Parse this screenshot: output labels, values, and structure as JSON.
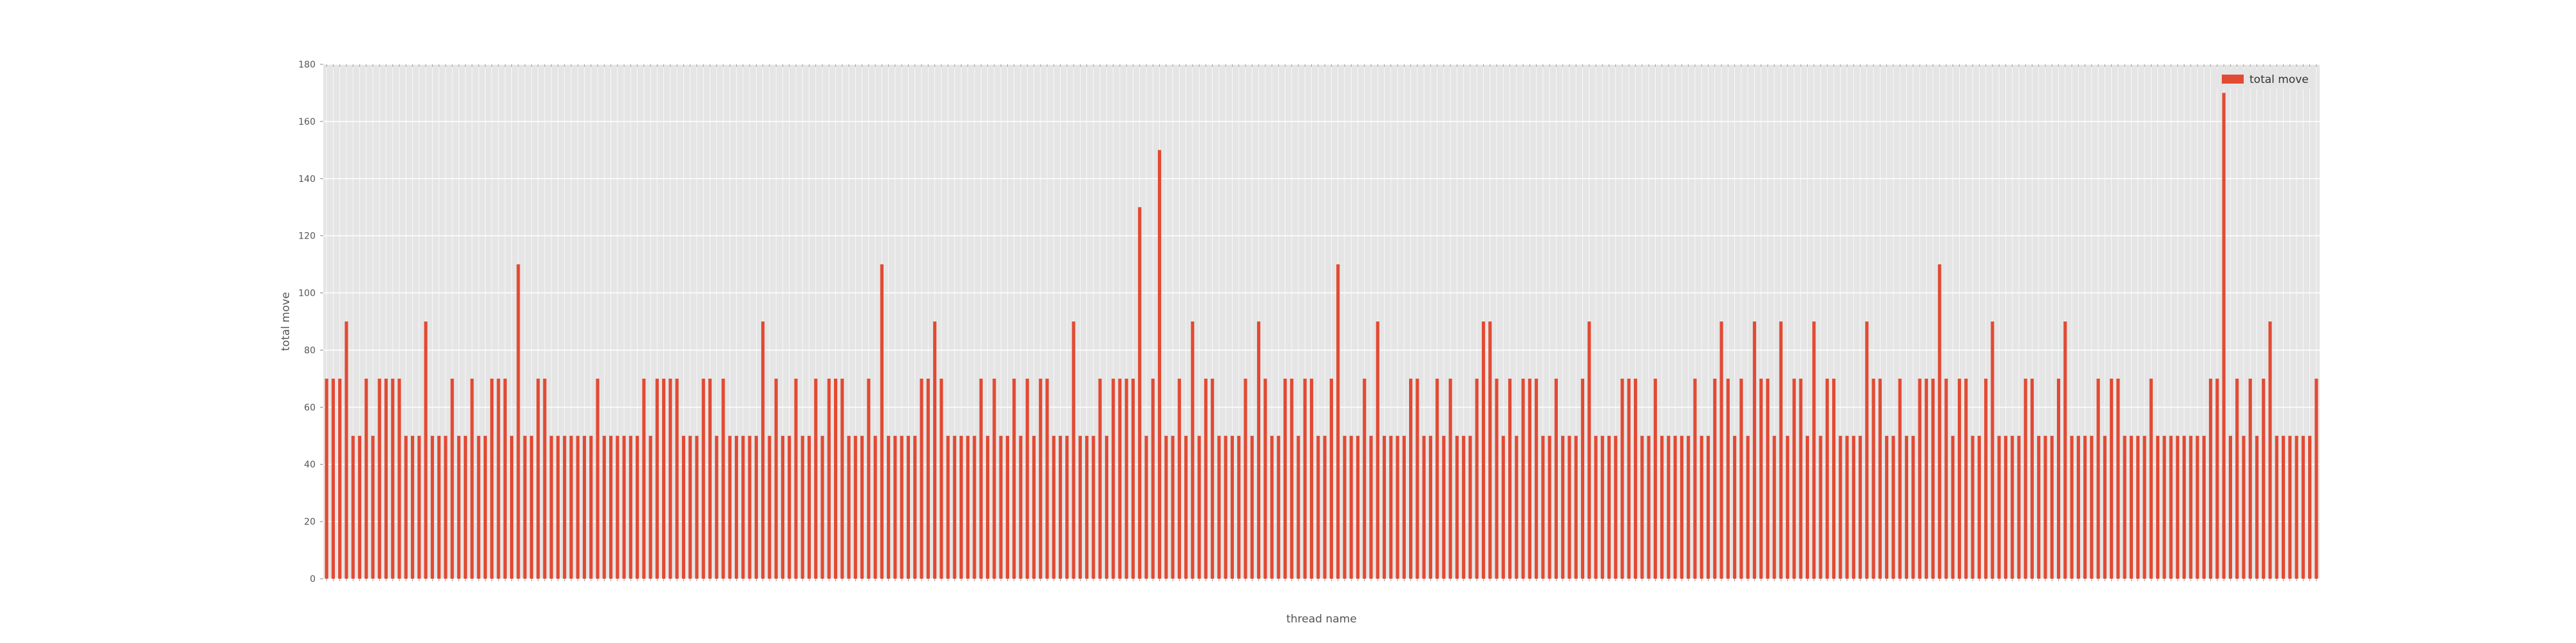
{
  "chart_data": {
    "type": "bar",
    "xlabel": "thread name",
    "ylabel": "total move",
    "ylim": [
      0,
      180
    ],
    "yticks": [
      0,
      20,
      40,
      60,
      80,
      100,
      120,
      140,
      160,
      180
    ],
    "grid": true,
    "legend_position": "top-right",
    "series": [
      {
        "name": "total move",
        "color": "#e24a33",
        "values": [
          70,
          70,
          70,
          90,
          50,
          50,
          70,
          50,
          70,
          70,
          70,
          70,
          50,
          50,
          50,
          90,
          50,
          50,
          50,
          70,
          50,
          50,
          70,
          50,
          50,
          70,
          70,
          70,
          50,
          110,
          50,
          50,
          70,
          70,
          50,
          50,
          50,
          50,
          50,
          50,
          50,
          70,
          50,
          50,
          50,
          50,
          50,
          50,
          70,
          50,
          70,
          70,
          70,
          70,
          50,
          50,
          50,
          70,
          70,
          50,
          70,
          50,
          50,
          50,
          50,
          50,
          90,
          50,
          70,
          50,
          50,
          70,
          50,
          50,
          70,
          50,
          70,
          70,
          70,
          50,
          50,
          50,
          70,
          50,
          110,
          50,
          50,
          50,
          50,
          50,
          70,
          70,
          90,
          70,
          50,
          50,
          50,
          50,
          50,
          70,
          50,
          70,
          50,
          50,
          70,
          50,
          70,
          50,
          70,
          70,
          50,
          50,
          50,
          90,
          50,
          50,
          50,
          70,
          50,
          70,
          70,
          70,
          70,
          130,
          50,
          70,
          150,
          50,
          50,
          70,
          50,
          90,
          50,
          70,
          70,
          50,
          50,
          50,
          50,
          70,
          50,
          90,
          70,
          50,
          50,
          70,
          70,
          50,
          70,
          70,
          50,
          50,
          70,
          110,
          50,
          50,
          50,
          70,
          50,
          90,
          50,
          50,
          50,
          50,
          70,
          70,
          50,
          50,
          70,
          50,
          70,
          50,
          50,
          50,
          70,
          90,
          90,
          70,
          50,
          70,
          50,
          70,
          70,
          70,
          50,
          50,
          70,
          50,
          50,
          50,
          70,
          90,
          50,
          50,
          50,
          50,
          70,
          70,
          70,
          50,
          50,
          70,
          50,
          50,
          50,
          50,
          50,
          70,
          50,
          50,
          70,
          90,
          70,
          50,
          70,
          50,
          90,
          70,
          70,
          50,
          90,
          50,
          70,
          70,
          50,
          90,
          50,
          70,
          70,
          50,
          50,
          50,
          50,
          90,
          70,
          70,
          50,
          50,
          70,
          50,
          50,
          70,
          70,
          70,
          110,
          70,
          50,
          70,
          70,
          50,
          50,
          70,
          90,
          50,
          50,
          50,
          50,
          70,
          70,
          50,
          50,
          50,
          70,
          90,
          50,
          50,
          50,
          50,
          70,
          50,
          70,
          70,
          50,
          50,
          50,
          50,
          70,
          50,
          50,
          50,
          50,
          50,
          50,
          50,
          50,
          70,
          70,
          170,
          50,
          70,
          50,
          70,
          50,
          70,
          90,
          50,
          50,
          50,
          50,
          50,
          50,
          70
        ]
      }
    ]
  }
}
